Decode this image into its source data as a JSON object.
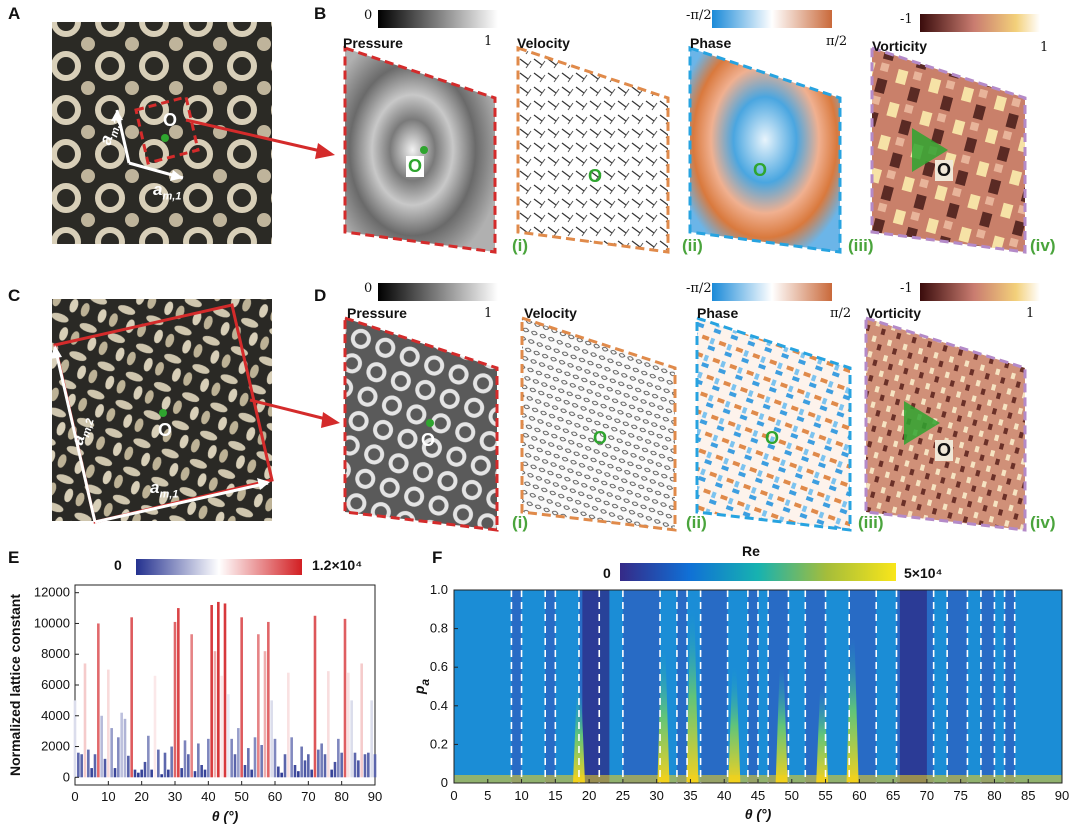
{
  "panels": {
    "A": "A",
    "B": "B",
    "C": "C",
    "D": "D",
    "E": "E",
    "F": "F"
  },
  "lattice": {
    "origin": "O",
    "am1": "a",
    "am1_sub": "m,1",
    "am2": "a",
    "am2_sub": "m,2"
  },
  "row_b": {
    "titles": [
      "Pressure",
      "Velocity",
      "Phase",
      "Vorticity"
    ],
    "romans": [
      "(i)",
      "(ii)",
      "(iii)",
      "(iv)"
    ],
    "pressure_cbar": {
      "min": "0",
      "max": "1"
    },
    "phase_cbar": {
      "min": "-π/2",
      "max": "π/2"
    },
    "vorticity_cbar": {
      "min": "-1",
      "max": "1"
    },
    "origin": "O"
  },
  "row_d": {
    "titles": [
      "Pressure",
      "Velocity",
      "Phase",
      "Vorticity"
    ],
    "romans": [
      "(i)",
      "(ii)",
      "(iii)",
      "(iv)"
    ],
    "pressure_cbar": {
      "min": "0",
      "max": "1"
    },
    "phase_cbar": {
      "min": "-π/2",
      "max": "π/2"
    },
    "vorticity_cbar": {
      "min": "-1",
      "max": "1"
    },
    "origin": "O"
  },
  "colors": {
    "red": "#d42b2b",
    "green": "#2fa52f",
    "orange_dash": "#e08a4a",
    "blue_dash": "#27a3e0",
    "purple_dash": "#b48ac8",
    "blue_bar": "#23308e",
    "red_bar": "#cf1f22"
  },
  "chart_data": [
    {
      "panel": "E",
      "type": "bar",
      "xlabel": "θ (°)",
      "ylabel": "Normalized lattice constant",
      "xlim": [
        0,
        90
      ],
      "ylim": [
        -500,
        12500
      ],
      "xticks": [
        "0",
        "10",
        "20",
        "30",
        "40",
        "50",
        "60",
        "70",
        "80",
        "90"
      ],
      "yticks": [
        "0",
        "2000",
        "4000",
        "6000",
        "8000",
        "10000",
        "12000"
      ],
      "colorbar": {
        "min": "0",
        "max": "1.2×10⁴"
      },
      "series": [
        {
          "x": [
            0,
            1,
            2,
            3,
            4,
            5,
            6,
            7,
            8,
            9,
            10,
            11,
            12,
            13,
            14,
            15,
            16,
            17,
            18,
            19,
            20,
            21,
            22,
            23,
            24,
            25,
            26,
            27,
            28,
            29,
            30,
            31,
            32,
            33,
            34,
            35,
            36,
            37,
            38,
            39,
            40,
            41,
            42,
            43,
            44,
            45,
            46,
            47,
            48,
            49,
            50,
            51,
            52,
            53,
            54,
            55,
            56,
            57,
            58,
            59,
            60,
            61,
            62,
            63,
            64,
            65,
            66,
            67,
            68,
            69,
            70,
            71,
            72,
            73,
            74,
            75,
            76,
            77,
            78,
            79,
            80,
            81,
            82,
            83,
            84,
            85,
            86,
            87,
            88,
            89,
            90
          ],
          "values": [
            5000,
            1600,
            1500,
            7400,
            1800,
            600,
            1500,
            10000,
            4000,
            1200,
            7000,
            3200,
            600,
            2600,
            4200,
            3800,
            1400,
            10400,
            500,
            300,
            500,
            1000,
            2700,
            500,
            6600,
            1800,
            200,
            1600,
            500,
            2000,
            10100,
            11000,
            600,
            2400,
            1500,
            9300,
            400,
            2200,
            800,
            500,
            2500,
            11200,
            8200,
            11400,
            6600,
            11300,
            5400,
            2500,
            1500,
            3200,
            10400,
            800,
            1900,
            500,
            2600,
            9300,
            2100,
            8200,
            10100,
            5000,
            2500,
            700,
            300,
            1500,
            6800,
            2600,
            800,
            400,
            2000,
            1100,
            1500,
            500,
            10500,
            1800,
            2200,
            1500,
            6900,
            500,
            1000,
            2500,
            1600,
            10300,
            6800,
            5000,
            1600,
            1100,
            7400,
            1500,
            1600,
            5000,
            1500
          ]
        }
      ]
    },
    {
      "panel": "F",
      "type": "heatmap",
      "title": "Re",
      "xlabel": "θ (°)",
      "ylabel": "p",
      "ylabel_sub": "a",
      "xlim": [
        0,
        90
      ],
      "ylim": [
        0,
        1.0
      ],
      "xticks": [
        "0",
        "5",
        "10",
        "15",
        "20",
        "25",
        "30",
        "35",
        "40",
        "45",
        "50",
        "55",
        "60",
        "65",
        "70",
        "75",
        "80",
        "85",
        "90"
      ],
      "yticks": [
        "0",
        "0.2",
        "0.4",
        "0.6",
        "0.8",
        "1.0"
      ],
      "colorbar": {
        "min": "0",
        "max": "5×10⁴"
      },
      "dashed_lines_theta": [
        8.5,
        10,
        13.5,
        15,
        18.5,
        21.5,
        25,
        30.5,
        33,
        34.5,
        36.5,
        40.5,
        43.5,
        45,
        46.5,
        49.5,
        52,
        55,
        58.5,
        62.5,
        65.5,
        71,
        73,
        76,
        78,
        80,
        81.5,
        83
      ],
      "bright_columns": [
        {
          "theta": 31,
          "peak": 0.7
        },
        {
          "theta": 35.3,
          "peak": 0.9
        },
        {
          "theta": 41.5,
          "peak": 0.6
        },
        {
          "theta": 48.5,
          "peak": 0.6
        },
        {
          "theta": 54.5,
          "peak": 0.5
        },
        {
          "theta": 59,
          "peak": 0.75
        },
        {
          "theta": 18.5,
          "peak": 0.5
        }
      ]
    }
  ]
}
